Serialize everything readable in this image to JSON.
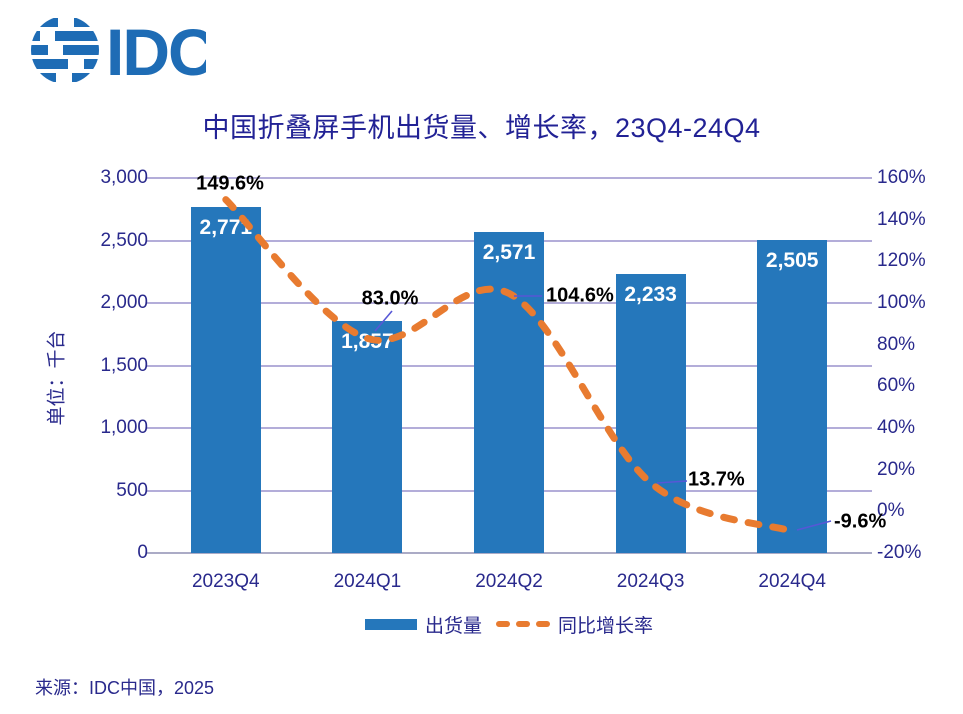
{
  "logo": {
    "text": "IDC",
    "color": "#1E6CB5"
  },
  "title": "中国折叠屏手机出货量、增长率，23Q4-24Q4",
  "y_axis_left": {
    "title": "单位：千台",
    "ticks": [
      "3,000",
      "2,500",
      "2,000",
      "1,500",
      "1,000",
      "500",
      "0"
    ]
  },
  "y_axis_right": {
    "ticks": [
      "160%",
      "140%",
      "120%",
      "100%",
      "80%",
      "60%",
      "40%",
      "20%",
      "0%",
      "-20%"
    ]
  },
  "chart_data": {
    "type": "bar",
    "subtype": "combo-bar-line",
    "title": "中国折叠屏手机出货量、增长率，23Q4-24Q4",
    "categories": [
      "2023Q4",
      "2024Q1",
      "2024Q2",
      "2024Q3",
      "2024Q4"
    ],
    "series": [
      {
        "name": "出货量",
        "type": "bar",
        "axis": "left",
        "values": [
          2771,
          1857,
          2571,
          2233,
          2505
        ],
        "labels": [
          "2,771",
          "1,857",
          "2,571",
          "2,233",
          "2,505"
        ],
        "color": "#2577BB"
      },
      {
        "name": "同比增长率",
        "type": "line",
        "style": "dashed",
        "axis": "right",
        "values": [
          149.6,
          83.0,
          104.6,
          13.7,
          -9.6
        ],
        "labels": [
          "149.6%",
          "83.0%",
          "104.6%",
          "13.7%",
          "-9.6%"
        ],
        "color": "#E87B30"
      }
    ],
    "ylabel_left": "单位：千台",
    "ylim_left": [
      0,
      3000
    ],
    "ylim_right": [
      -20,
      160
    ],
    "grid": true,
    "legend_position": "bottom"
  },
  "legend": {
    "items": [
      {
        "label": "出货量",
        "marker": "bar",
        "color": "#2577BB"
      },
      {
        "label": "同比增长率",
        "marker": "dashed-line",
        "color": "#E87B30"
      }
    ]
  },
  "source": "来源：IDC中国，2025"
}
